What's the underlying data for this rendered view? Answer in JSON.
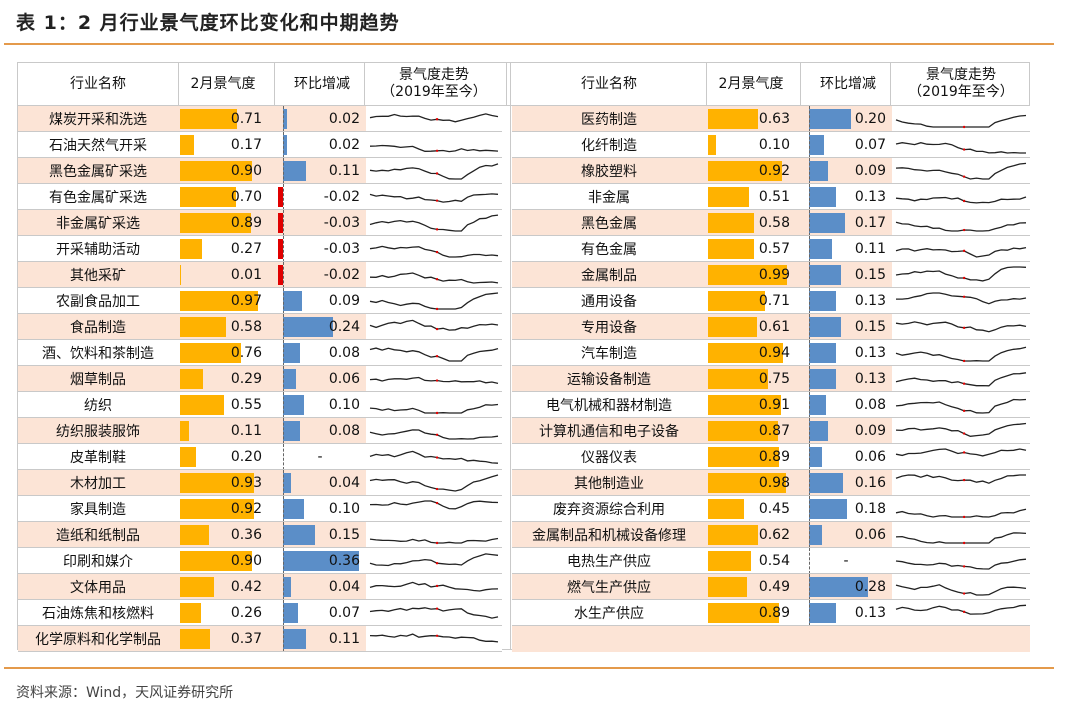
{
  "title": "表 1：2 月行业景气度环比变化和中期趋势",
  "source": "资料来源：Wind，天风证券研究所",
  "headers": {
    "name": "行业名称",
    "jingqi": "2月景气度",
    "huanbi": "环比增减",
    "trend": "景气度走势\n（2019年至今）"
  },
  "left_rows": [
    {
      "name": "煤炭开采和洗选",
      "jingqi": 0.71,
      "jingqi_text": "0.71",
      "huanbi": 0.02,
      "huanbi_text": "0.02"
    },
    {
      "name": "石油天然气开采",
      "jingqi": 0.17,
      "jingqi_text": "0.17",
      "huanbi": 0.02,
      "huanbi_text": "0.02"
    },
    {
      "name": "黑色金属矿采选",
      "jingqi": 0.9,
      "jingqi_text": "0.90",
      "huanbi": 0.11,
      "huanbi_text": "0.11"
    },
    {
      "name": "有色金属矿采选",
      "jingqi": 0.7,
      "jingqi_text": "0.70",
      "huanbi": -0.02,
      "huanbi_text": "-0.02"
    },
    {
      "name": "非金属矿采选",
      "jingqi": 0.89,
      "jingqi_text": "0.89",
      "huanbi": -0.03,
      "huanbi_text": "-0.03"
    },
    {
      "name": "开采辅助活动",
      "jingqi": 0.27,
      "jingqi_text": "0.27",
      "huanbi": -0.03,
      "huanbi_text": "-0.03"
    },
    {
      "name": "其他采矿",
      "jingqi": 0.01,
      "jingqi_text": "0.01",
      "huanbi": -0.02,
      "huanbi_text": "-0.02"
    },
    {
      "name": "农副食品加工",
      "jingqi": 0.97,
      "jingqi_text": "0.97",
      "huanbi": 0.09,
      "huanbi_text": "0.09"
    },
    {
      "name": "食品制造",
      "jingqi": 0.58,
      "jingqi_text": "0.58",
      "huanbi": 0.24,
      "huanbi_text": "0.24"
    },
    {
      "name": "酒、饮料和茶制造",
      "jingqi": 0.76,
      "jingqi_text": "0.76",
      "huanbi": 0.08,
      "huanbi_text": "0.08"
    },
    {
      "name": "烟草制品",
      "jingqi": 0.29,
      "jingqi_text": "0.29",
      "huanbi": 0.06,
      "huanbi_text": "0.06"
    },
    {
      "name": "纺织",
      "jingqi": 0.55,
      "jingqi_text": "0.55",
      "huanbi": 0.1,
      "huanbi_text": "0.10"
    },
    {
      "name": "纺织服装服饰",
      "jingqi": 0.11,
      "jingqi_text": "0.11",
      "huanbi": 0.08,
      "huanbi_text": "0.08"
    },
    {
      "name": "皮革制鞋",
      "jingqi": 0.2,
      "jingqi_text": "0.20",
      "huanbi": null,
      "huanbi_text": "-"
    },
    {
      "name": "木材加工",
      "jingqi": 0.93,
      "jingqi_text": "0.93",
      "huanbi": 0.04,
      "huanbi_text": "0.04"
    },
    {
      "name": "家具制造",
      "jingqi": 0.92,
      "jingqi_text": "0.92",
      "huanbi": 0.1,
      "huanbi_text": "0.10"
    },
    {
      "name": "造纸和纸制品",
      "jingqi": 0.36,
      "jingqi_text": "0.36",
      "huanbi": 0.15,
      "huanbi_text": "0.15"
    },
    {
      "name": "印刷和媒介",
      "jingqi": 0.9,
      "jingqi_text": "0.90",
      "huanbi": 0.36,
      "huanbi_text": "0.36"
    },
    {
      "name": "文体用品",
      "jingqi": 0.42,
      "jingqi_text": "0.42",
      "huanbi": 0.04,
      "huanbi_text": "0.04"
    },
    {
      "name": "石油炼焦和核燃料",
      "jingqi": 0.26,
      "jingqi_text": "0.26",
      "huanbi": 0.07,
      "huanbi_text": "0.07"
    },
    {
      "name": "化学原料和化学制品",
      "jingqi": 0.37,
      "jingqi_text": "0.37",
      "huanbi": 0.11,
      "huanbi_text": "0.11"
    }
  ],
  "right_rows": [
    {
      "name": "医药制造",
      "jingqi": 0.63,
      "jingqi_text": "0.63",
      "huanbi": 0.2,
      "huanbi_text": "0.20"
    },
    {
      "name": "化纤制造",
      "jingqi": 0.1,
      "jingqi_text": "0.10",
      "huanbi": 0.07,
      "huanbi_text": "0.07"
    },
    {
      "name": "橡胶塑料",
      "jingqi": 0.92,
      "jingqi_text": "0.92",
      "huanbi": 0.09,
      "huanbi_text": "0.09"
    },
    {
      "name": "非金属",
      "jingqi": 0.51,
      "jingqi_text": "0.51",
      "huanbi": 0.13,
      "huanbi_text": "0.13"
    },
    {
      "name": "黑色金属",
      "jingqi": 0.58,
      "jingqi_text": "0.58",
      "huanbi": 0.17,
      "huanbi_text": "0.17"
    },
    {
      "name": "有色金属",
      "jingqi": 0.57,
      "jingqi_text": "0.57",
      "huanbi": 0.11,
      "huanbi_text": "0.11"
    },
    {
      "name": "金属制品",
      "jingqi": 0.99,
      "jingqi_text": "0.99",
      "huanbi": 0.15,
      "huanbi_text": "0.15"
    },
    {
      "name": "通用设备",
      "jingqi": 0.71,
      "jingqi_text": "0.71",
      "huanbi": 0.13,
      "huanbi_text": "0.13"
    },
    {
      "name": "专用设备",
      "jingqi": 0.61,
      "jingqi_text": "0.61",
      "huanbi": 0.15,
      "huanbi_text": "0.15"
    },
    {
      "name": "汽车制造",
      "jingqi": 0.94,
      "jingqi_text": "0.94",
      "huanbi": 0.13,
      "huanbi_text": "0.13"
    },
    {
      "name": "运输设备制造",
      "jingqi": 0.75,
      "jingqi_text": "0.75",
      "huanbi": 0.13,
      "huanbi_text": "0.13"
    },
    {
      "name": "电气机械和器材制造",
      "jingqi": 0.91,
      "jingqi_text": "0.91",
      "huanbi": 0.08,
      "huanbi_text": "0.08"
    },
    {
      "name": "计算机通信和电子设备",
      "jingqi": 0.87,
      "jingqi_text": "0.87",
      "huanbi": 0.09,
      "huanbi_text": "0.09"
    },
    {
      "name": "仪器仪表",
      "jingqi": 0.89,
      "jingqi_text": "0.89",
      "huanbi": 0.06,
      "huanbi_text": "0.06"
    },
    {
      "name": "其他制造业",
      "jingqi": 0.98,
      "jingqi_text": "0.98",
      "huanbi": 0.16,
      "huanbi_text": "0.16"
    },
    {
      "name": "废弃资源综合利用",
      "jingqi": 0.45,
      "jingqi_text": "0.45",
      "huanbi": 0.18,
      "huanbi_text": "0.18"
    },
    {
      "name": "金属制品和机械设备修理",
      "jingqi": 0.62,
      "jingqi_text": "0.62",
      "huanbi": 0.06,
      "huanbi_text": "0.06"
    },
    {
      "name": "电热生产供应",
      "jingqi": 0.54,
      "jingqi_text": "0.54",
      "huanbi": null,
      "huanbi_text": "-"
    },
    {
      "name": "燃气生产供应",
      "jingqi": 0.49,
      "jingqi_text": "0.49",
      "huanbi": 0.28,
      "huanbi_text": "0.28"
    },
    {
      "name": "水生产供应",
      "jingqi": 0.89,
      "jingqi_text": "0.89",
      "huanbi": 0.13,
      "huanbi_text": "0.13"
    }
  ],
  "colors": {
    "jingqi_bar": "#ffb200",
    "huanbi_bar_positive": "#5b8ec8",
    "huanbi_bar_negative": "#e00000",
    "row_shade": "#fce4d6",
    "sparkline": "#222222",
    "sparkline_marker": "#e00000",
    "rule": "#e49a4b"
  }
}
